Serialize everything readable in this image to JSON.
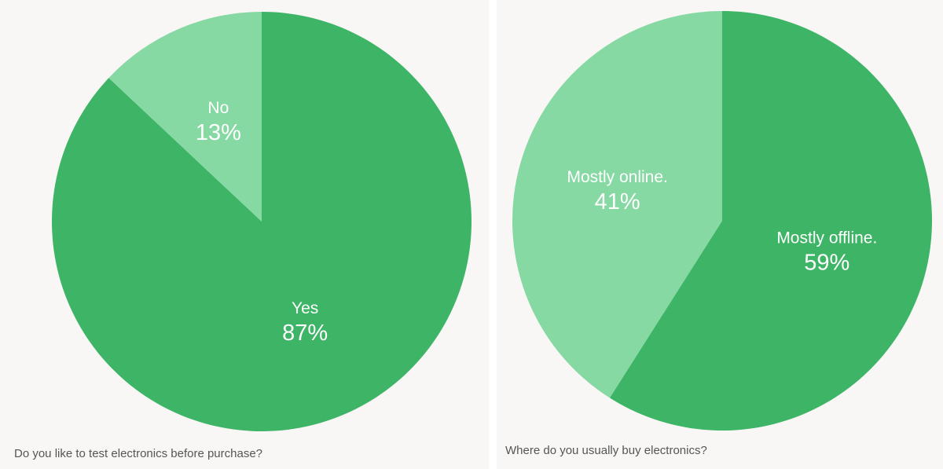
{
  "chart_data": [
    {
      "type": "pie",
      "title": "Do you like to test electronics before purchase?",
      "categories": [
        "Yes",
        "No"
      ],
      "values": [
        87,
        13
      ],
      "value_labels": [
        "87%",
        "13%"
      ],
      "colors": [
        "#3db466",
        "#86d9a2"
      ]
    },
    {
      "type": "pie",
      "title": "Where do you usually buy electronics?",
      "categories": [
        "Mostly offline.",
        "Mostly online."
      ],
      "values": [
        59,
        41
      ],
      "value_labels": [
        "59%",
        "41%"
      ],
      "colors": [
        "#3db466",
        "#86d9a2"
      ]
    }
  ]
}
